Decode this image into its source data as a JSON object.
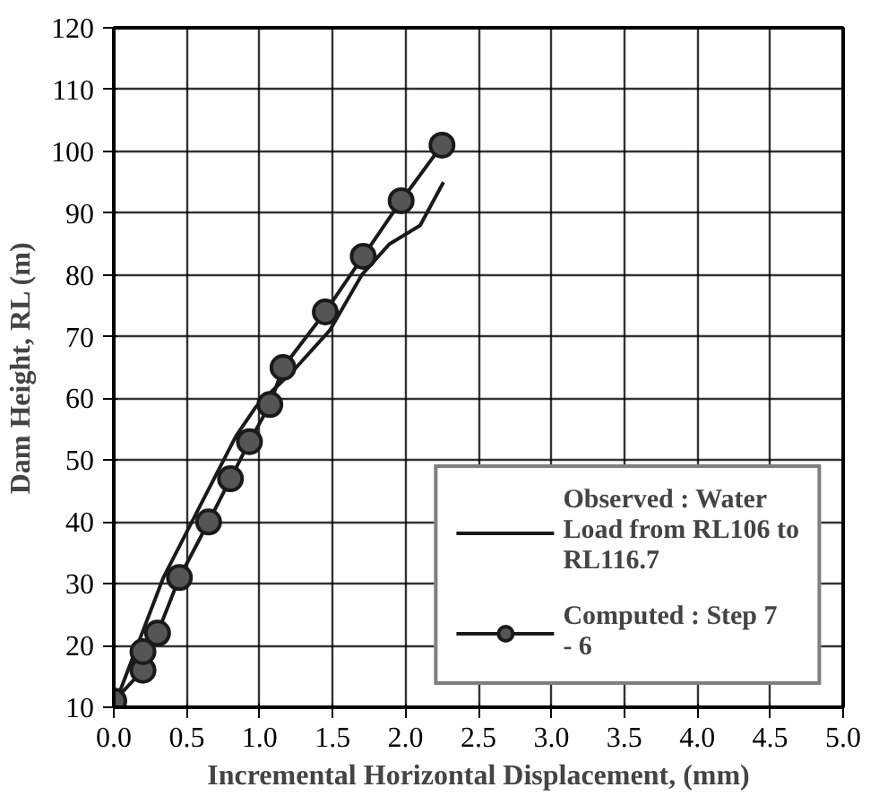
{
  "chart_data": {
    "type": "line",
    "xlabel": "Incremental Horizontal Displacement, (mm)",
    "ylabel": "Dam Height, RL (m)",
    "xlim": [
      0,
      5
    ],
    "ylim": [
      10,
      120
    ],
    "xticks": [
      {
        "value": 0,
        "label": "0.0"
      },
      {
        "value": 0.5,
        "label": "0.5"
      },
      {
        "value": 1,
        "label": "1.0"
      },
      {
        "value": 1.5,
        "label": "1.5"
      },
      {
        "value": 2,
        "label": "2.0"
      },
      {
        "value": 2.5,
        "label": "2.5"
      },
      {
        "value": 3,
        "label": "3.0"
      },
      {
        "value": 3.5,
        "label": "3.5"
      },
      {
        "value": 4,
        "label": "4.0"
      },
      {
        "value": 4.5,
        "label": "4.5"
      },
      {
        "value": 5,
        "label": "5.0"
      }
    ],
    "yticks": [
      10,
      20,
      30,
      40,
      50,
      60,
      70,
      80,
      90,
      100,
      110,
      120
    ],
    "grid": true,
    "legend": "bottom right",
    "series": [
      {
        "name": "Observed : Water Load from RL106 to RL116.7",
        "color": "#1a1a1a",
        "marker": "none",
        "x": [
          0,
          0.34,
          0.6,
          0.84,
          0.97,
          1.25,
          1.48,
          1.7,
          1.89,
          2.1,
          2.26
        ],
        "values": [
          10,
          31,
          43,
          54,
          58.5,
          65,
          71,
          80,
          85,
          88,
          95
        ]
      },
      {
        "name": "Computed : Step 7 - 6",
        "color": "#1a1a1a",
        "marker": "circle",
        "x": [
          0,
          0.2,
          0.2,
          0.3,
          0.45,
          0.65,
          0.8,
          0.93,
          1.07,
          1.16,
          1.45,
          1.71,
          1.97,
          2.25
        ],
        "values": [
          11,
          16,
          19,
          22,
          31,
          40,
          47,
          53,
          59,
          65,
          74,
          83,
          92,
          101
        ]
      }
    ]
  }
}
